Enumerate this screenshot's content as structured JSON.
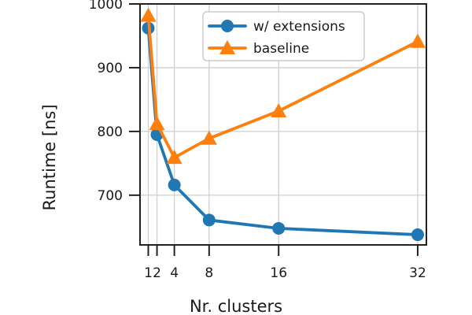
{
  "figure": {
    "background": "#ffffff",
    "text_color": "#1a1a1a",
    "spine_color": "#222222",
    "grid_color": "#cfcfcf",
    "legend_border_color": "#cccccc",
    "legend_background": "#ffffff"
  },
  "chart_data": {
    "type": "line",
    "title": "",
    "xlabel": "Nr. clusters",
    "ylabel": "Runtime [ns]",
    "x": [
      1,
      2,
      4,
      8,
      16,
      32
    ],
    "x_tick_labels": [
      "1",
      "2",
      "4",
      "8",
      "16",
      "32"
    ],
    "y_ticks": [
      700,
      800,
      900,
      1000
    ],
    "y_tick_labels": [
      "700",
      "800",
      "900",
      "1000"
    ],
    "xlim": [
      0.05,
      33.0
    ],
    "ylim": [
      622,
      1000
    ],
    "grid": true,
    "legend_position": "upper center",
    "series": [
      {
        "name": "w/ extensions",
        "color": "#1f77b4",
        "marker": "circle",
        "values": [
          962,
          795,
          716,
          661,
          648,
          638
        ]
      },
      {
        "name": "baseline",
        "color": "#ff7f0e",
        "marker": "triangle",
        "values": [
          982,
          812,
          759,
          789,
          832,
          941
        ]
      }
    ]
  }
}
